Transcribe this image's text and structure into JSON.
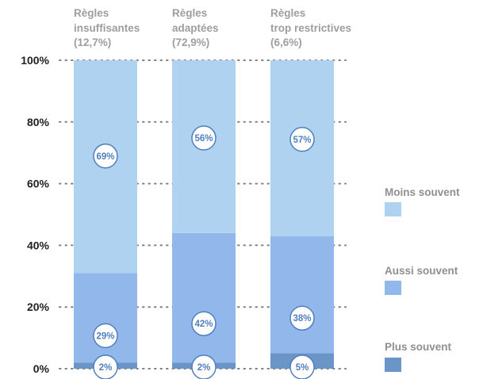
{
  "chart_data": {
    "type": "bar",
    "stacked": true,
    "categories": [
      [
        "Règles",
        "insuffisantes",
        "(12,7%)"
      ],
      [
        "Règles",
        "adaptées",
        "(72,9%)"
      ],
      [
        "Règles",
        "trop restrictives",
        "(6,6%)"
      ]
    ],
    "series": [
      {
        "name": "Plus souvent",
        "values": [
          2,
          2,
          5
        ],
        "color": "#6b94c7"
      },
      {
        "name": "Aussi souvent",
        "values": [
          29,
          42,
          38
        ],
        "color": "#92b7ea"
      },
      {
        "name": "Moins souvent",
        "values": [
          69,
          56,
          57
        ],
        "color": "#afd2f0"
      }
    ],
    "data_labels": [
      [
        "2%",
        "29%",
        "69%"
      ],
      [
        "2%",
        "42%",
        "56%"
      ],
      [
        "5%",
        "38%",
        "57%"
      ]
    ],
    "y_ticks": [
      0,
      20,
      40,
      60,
      80,
      100
    ],
    "y_tick_labels": [
      "0%",
      "20%",
      "40%",
      "60%",
      "80%",
      "100%"
    ],
    "ylim": [
      0,
      100
    ],
    "grid": true,
    "legend": {
      "placement": "right",
      "order": [
        "Moins souvent",
        "Aussi souvent",
        "Plus souvent"
      ]
    },
    "colors": {
      "axis_text": "#222222",
      "category_text": "#9e9e9e",
      "grid": "#7f7f7f",
      "legend_text": "#8f8f8f",
      "label_text": "#4f7fc0",
      "label_fill": "#ffffff"
    }
  }
}
